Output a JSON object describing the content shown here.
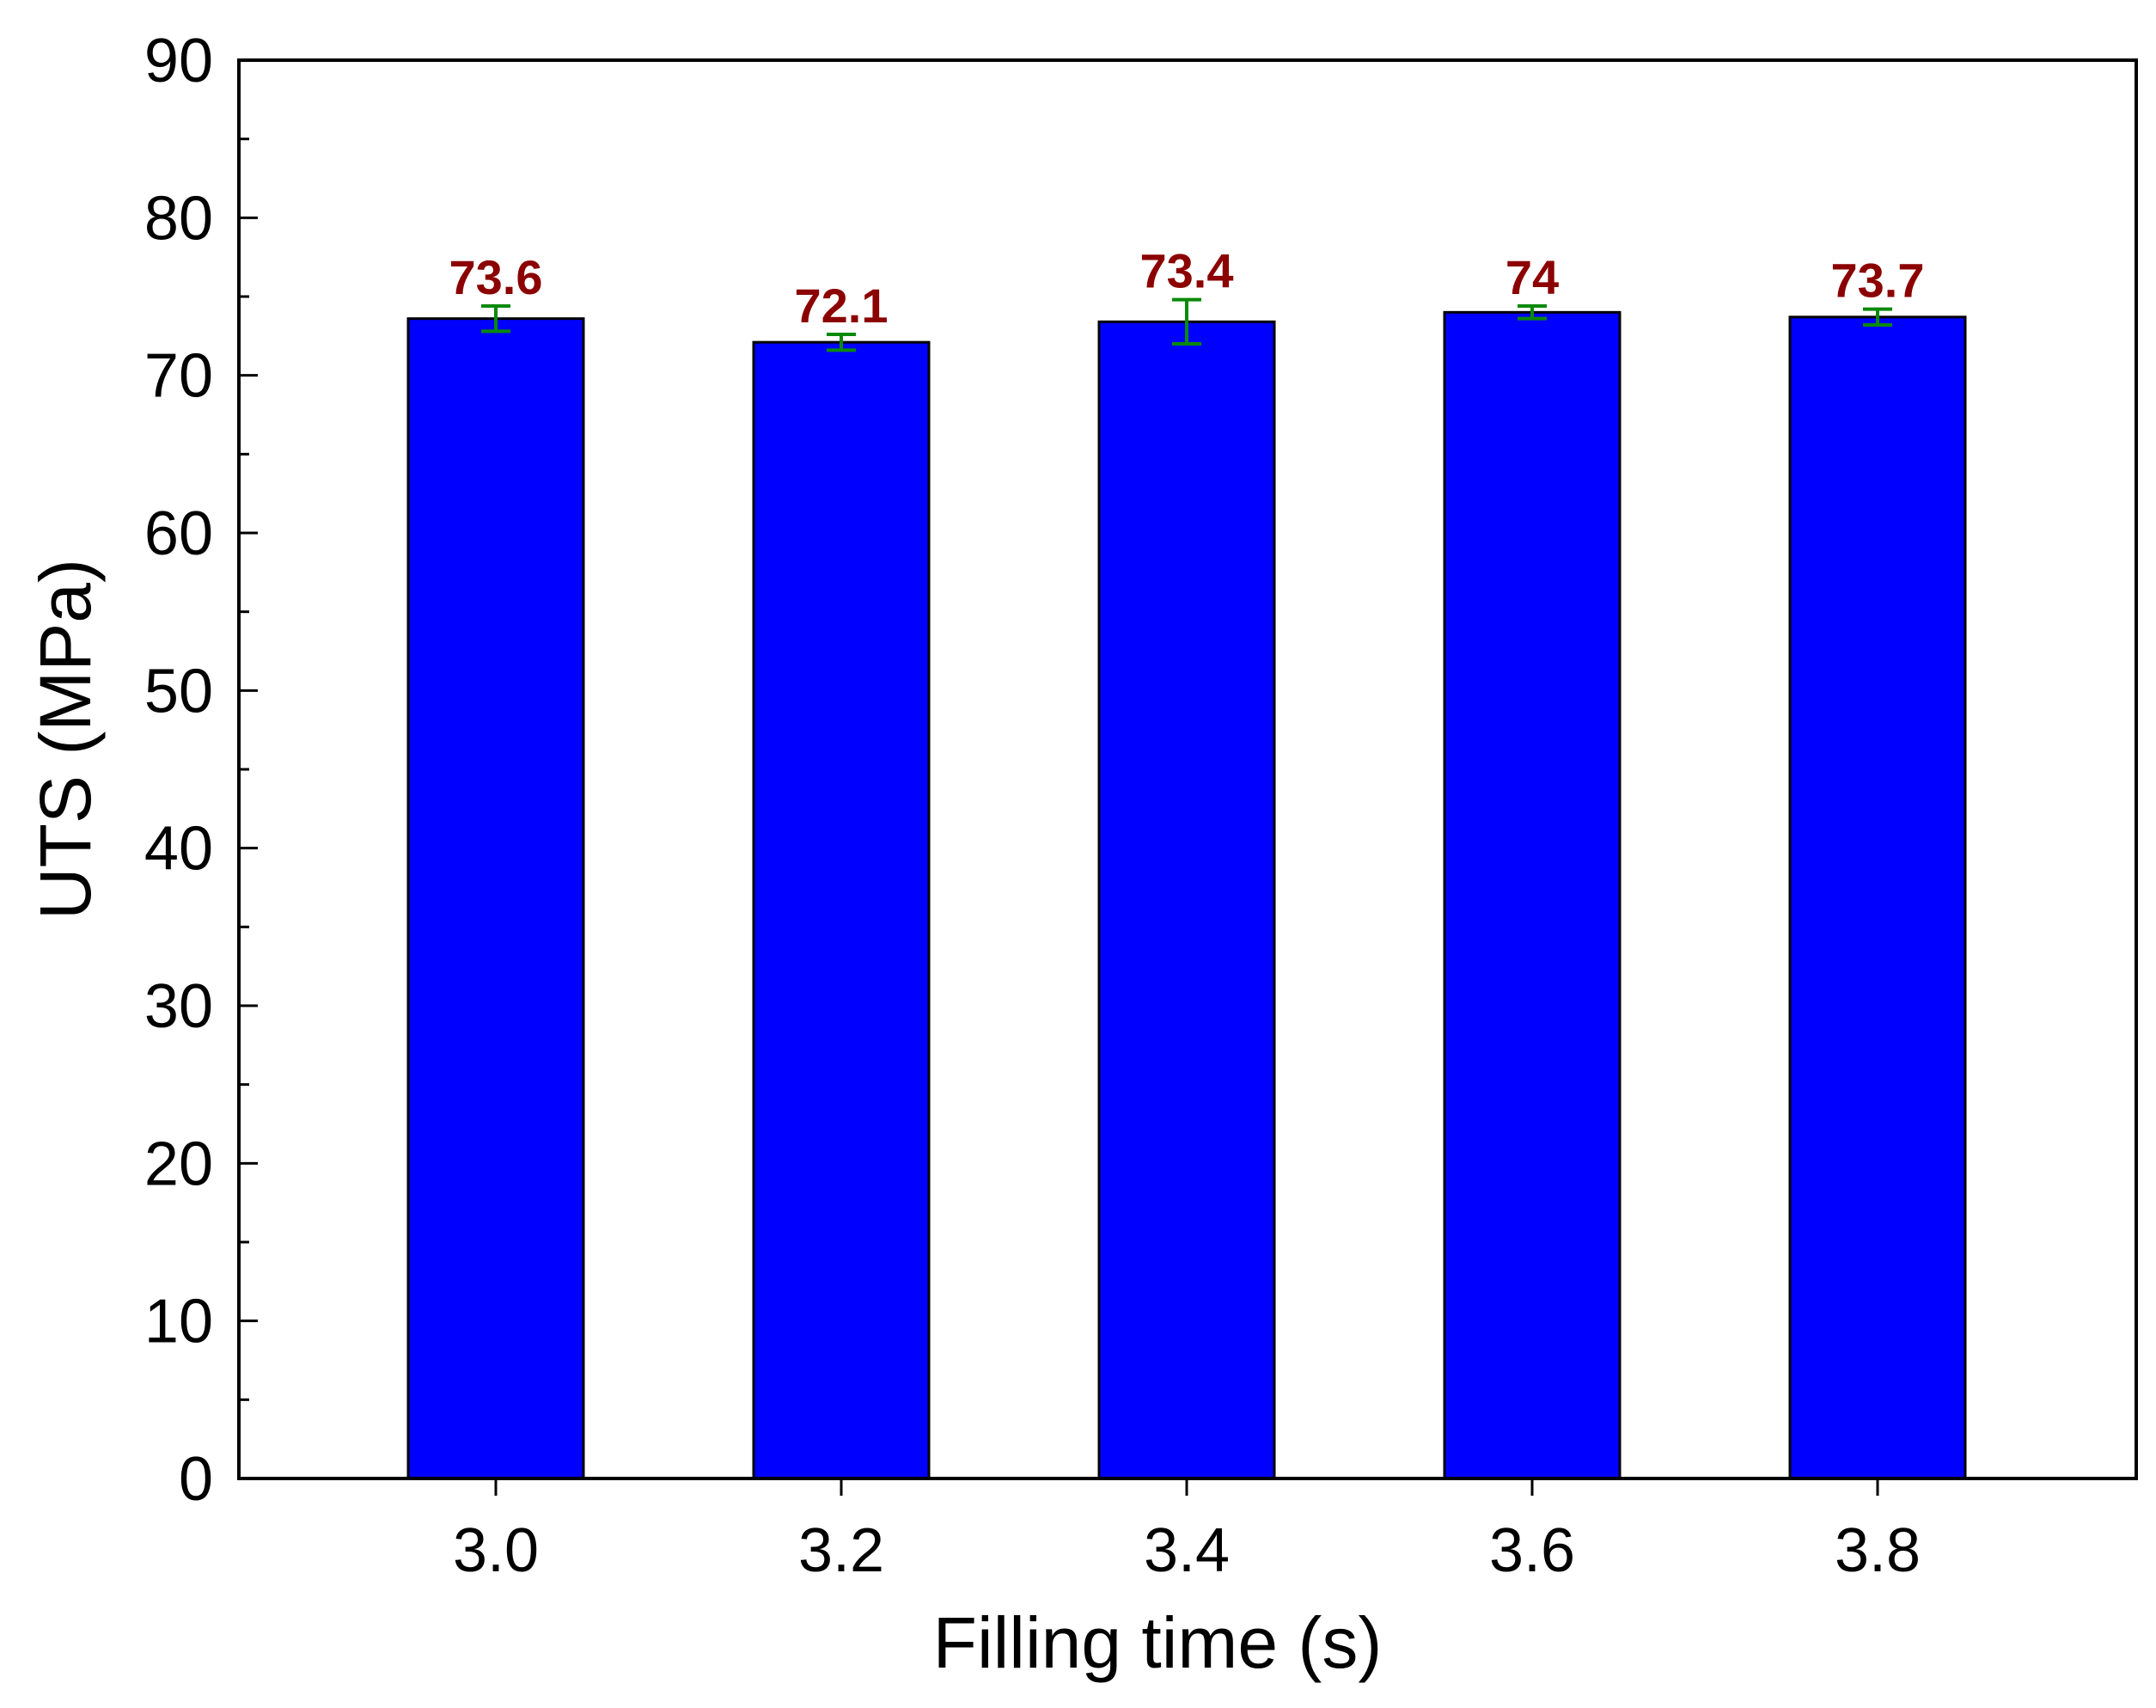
{
  "chart_data": {
    "type": "bar",
    "title": "",
    "xlabel": "Filling time (s)",
    "ylabel": "UTS (MPa)",
    "categories": [
      "3.0",
      "3.2",
      "3.4",
      "3.6",
      "3.8"
    ],
    "values": [
      73.6,
      72.1,
      73.4,
      74,
      73.7
    ],
    "value_labels": [
      "73.6",
      "72.1",
      "73.4",
      "74",
      "73.7"
    ],
    "error": [
      0.8,
      0.5,
      1.4,
      0.4,
      0.5
    ],
    "ylim": [
      0,
      90
    ],
    "yticks": [
      0,
      10,
      20,
      30,
      40,
      50,
      60,
      70,
      80,
      90
    ],
    "ytick_labels": [
      "0",
      "10",
      "20",
      "30",
      "40",
      "50",
      "60",
      "70",
      "80",
      "90"
    ],
    "grid": false,
    "colors": {
      "bar": "#0000ff",
      "bar_edge": "#000000",
      "error_bar": "#0a8a0a",
      "data_label": "#8b0000"
    }
  }
}
